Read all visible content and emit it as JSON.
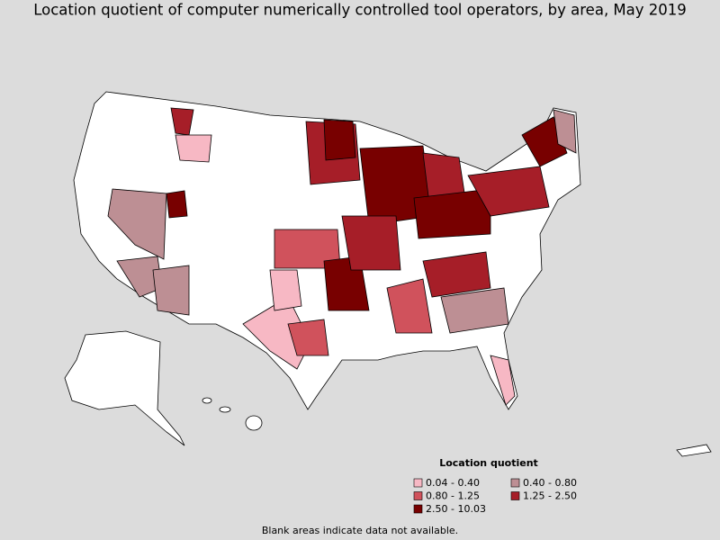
{
  "title": "Location quotient of computer numerically controlled tool operators, by area, May 2019",
  "legend": {
    "title": "Location quotient",
    "items": [
      {
        "label": "0.04 - 0.40",
        "color": "#f7b8c4"
      },
      {
        "label": "0.40 - 0.80",
        "color": "#bd8f94"
      },
      {
        "label": "0.80 - 1.25",
        "color": "#d0525c"
      },
      {
        "label": "1.25 - 2.50",
        "color": "#a61e28"
      },
      {
        "label": "2.50 - 10.03",
        "color": "#780000"
      }
    ]
  },
  "note": "Blank areas indicate data not available."
}
